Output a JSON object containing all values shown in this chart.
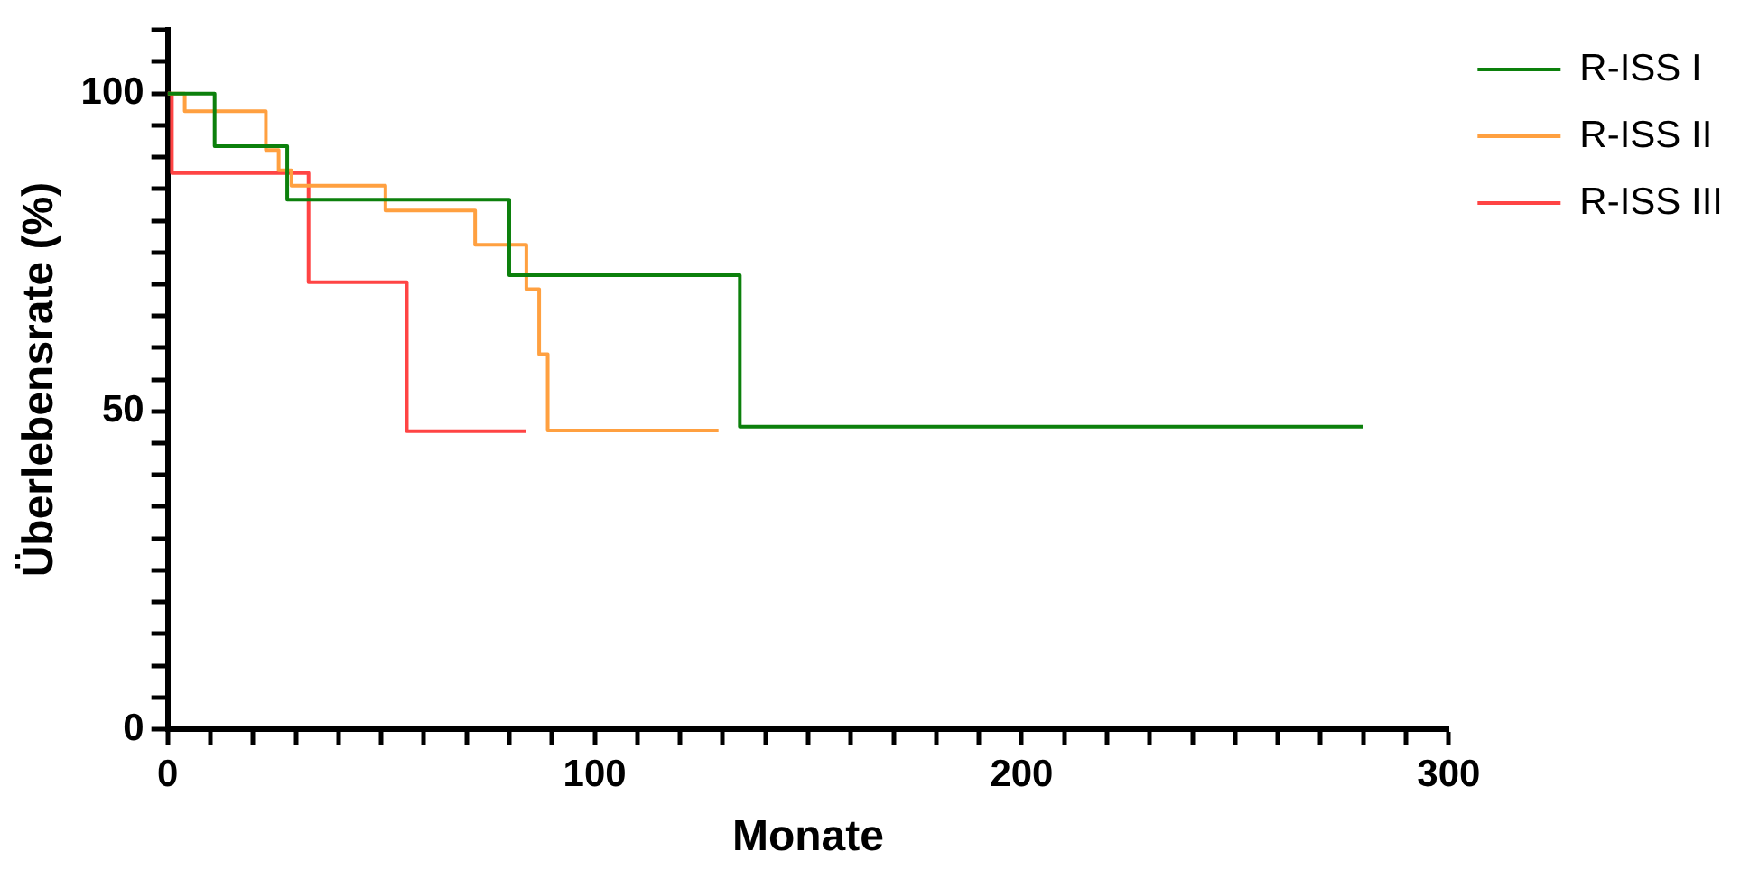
{
  "chart_data": {
    "type": "step",
    "xlabel": "Monate",
    "ylabel": "Überlebensrate (%)",
    "xlim": [
      0,
      300
    ],
    "xticks": [
      0,
      {
        "value": 10,
        "label": null
      },
      {
        "value": 20,
        "label": null
      },
      {
        "value": 30,
        "label": null
      },
      {
        "value": 40,
        "label": null
      },
      {
        "value": 50,
        "label": null
      },
      {
        "value": 60,
        "label": null
      },
      {
        "value": 70,
        "label": null
      },
      {
        "value": 80,
        "label": null
      },
      {
        "value": 90,
        "label": null
      },
      100,
      {
        "value": 110,
        "label": null
      },
      {
        "value": 120,
        "label": null
      },
      {
        "value": 130,
        "label": null
      },
      {
        "value": 140,
        "label": null
      },
      {
        "value": 150,
        "label": null
      },
      {
        "value": 160,
        "label": null
      },
      {
        "value": 170,
        "label": null
      },
      {
        "value": 180,
        "label": null
      },
      {
        "value": 190,
        "label": null
      },
      200,
      {
        "value": 210,
        "label": null
      },
      {
        "value": 220,
        "label": null
      },
      {
        "value": 230,
        "label": null
      },
      {
        "value": 240,
        "label": null
      },
      {
        "value": 250,
        "label": null
      },
      {
        "value": 260,
        "label": null
      },
      {
        "value": 270,
        "label": null
      },
      {
        "value": 280,
        "label": null
      },
      {
        "value": 290,
        "label": null
      },
      300
    ],
    "ylim": [
      0,
      110
    ],
    "yticks": [
      0,
      {
        "value": 5,
        "label": null
      },
      {
        "value": 10,
        "label": null
      },
      {
        "value": 15,
        "label": null
      },
      {
        "value": 20,
        "label": null
      },
      {
        "value": 25,
        "label": null
      },
      {
        "value": 30,
        "label": null
      },
      {
        "value": 35,
        "label": null
      },
      {
        "value": 40,
        "label": null
      },
      {
        "value": 45,
        "label": null
      },
      50,
      {
        "value": 55,
        "label": null
      },
      {
        "value": 60,
        "label": null
      },
      {
        "value": 65,
        "label": null
      },
      {
        "value": 70,
        "label": null
      },
      {
        "value": 75,
        "label": null
      },
      {
        "value": 80,
        "label": null
      },
      {
        "value": 85,
        "label": null
      },
      {
        "value": 90,
        "label": null
      },
      {
        "value": 95,
        "label": null
      },
      100,
      {
        "value": 105,
        "label": null
      },
      {
        "value": 110,
        "label": null
      }
    ],
    "grid": false,
    "legend": "top right",
    "marker": "none",
    "line_style": "solid",
    "series": [
      {
        "name": "R-ISS I",
        "color": "#0c800c",
        "x": [
          0,
          11,
          28,
          80,
          134,
          280
        ],
        "values": [
          100,
          91.7,
          83.3,
          71.4,
          47.6,
          47.6
        ]
      },
      {
        "name": "R-ISS II",
        "color": "#ffa040",
        "x": [
          0,
          4,
          23,
          26,
          29,
          51,
          72,
          84,
          87,
          89,
          129
        ],
        "values": [
          100,
          97.2,
          91.1,
          87.9,
          85.5,
          81.6,
          76.2,
          69.2,
          59,
          47,
          47
        ]
      },
      {
        "name": "R-ISS III",
        "color": "#ff4444",
        "x": [
          0,
          1,
          33,
          56,
          84
        ],
        "values": [
          100,
          87.5,
          70.3,
          46.9,
          46.9
        ]
      }
    ]
  }
}
